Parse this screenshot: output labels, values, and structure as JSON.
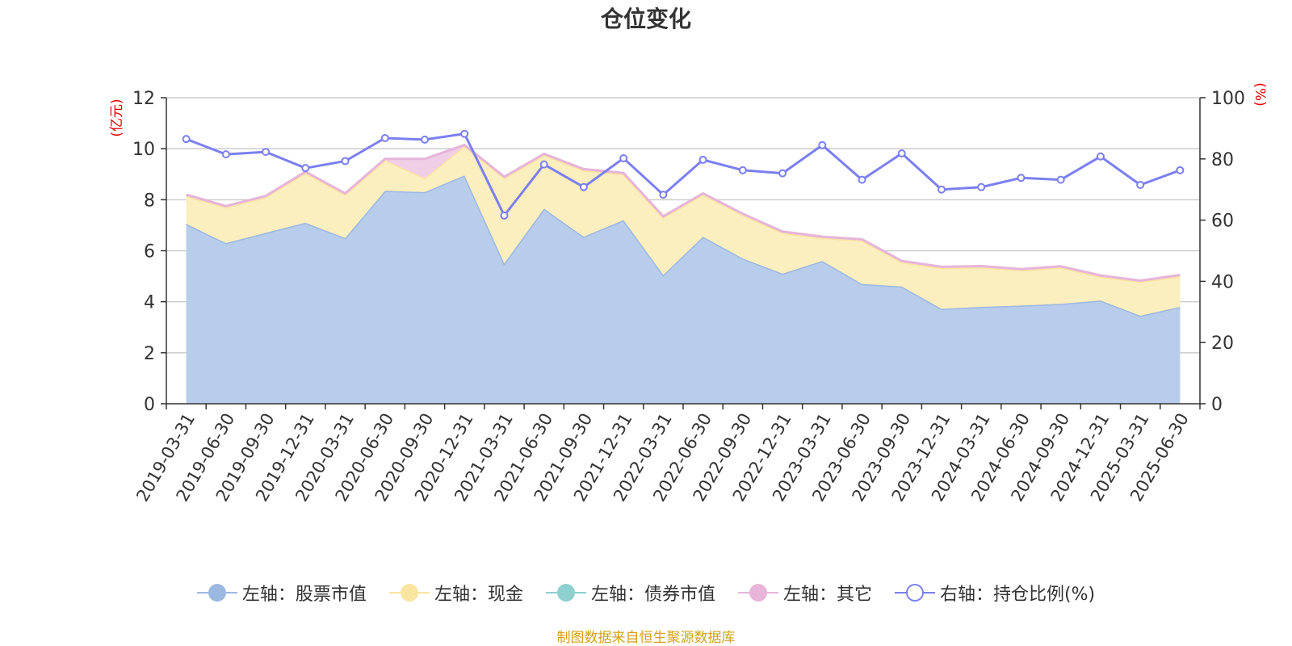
{
  "chart_data": {
    "type": "area",
    "title": "仓位变化",
    "y_left_label": "(亿元)",
    "y_right_label": "(%)",
    "y_left_range": [
      0,
      12
    ],
    "y_left_ticks": [
      "0",
      "2",
      "4",
      "6",
      "8",
      "10",
      "12"
    ],
    "y_right_range": [
      0,
      100
    ],
    "y_right_ticks": [
      "0",
      "20",
      "40",
      "60",
      "80",
      "100"
    ],
    "grid": true,
    "legend_position": "bottom",
    "categories": [
      "2019-03-31",
      "2019-06-30",
      "2019-09-30",
      "2019-12-31",
      "2020-03-31",
      "2020-06-30",
      "2020-09-30",
      "2020-12-31",
      "2021-03-31",
      "2021-06-30",
      "2021-09-30",
      "2021-12-31",
      "2022-03-31",
      "2022-06-30",
      "2022-09-30",
      "2022-12-31",
      "2023-03-31",
      "2023-06-30",
      "2023-09-30",
      "2023-12-31",
      "2024-03-31",
      "2024-06-30",
      "2024-09-30",
      "2024-12-31",
      "2025-03-31",
      "2025-06-30"
    ],
    "series": [
      {
        "name": "左轴：股票市值",
        "axis": "left",
        "kind": "stacked-area",
        "color": "#9db8e0",
        "fill": "#b8cceb",
        "values": [
          7.05,
          6.3,
          6.7,
          7.1,
          6.5,
          8.35,
          8.3,
          8.95,
          5.5,
          7.65,
          6.55,
          7.2,
          5.05,
          6.55,
          5.7,
          5.1,
          5.6,
          4.7,
          4.6,
          3.72,
          3.8,
          3.85,
          3.92,
          4.05,
          3.45,
          3.8
        ]
      },
      {
        "name": "左轴：现金",
        "axis": "left",
        "kind": "stacked-area",
        "color": "#f9e4a0",
        "fill": "#fbeebf",
        "values": [
          1.1,
          1.4,
          1.4,
          1.95,
          1.7,
          1.2,
          0.55,
          1.15,
          3.35,
          2.1,
          2.6,
          1.8,
          2.25,
          1.65,
          1.7,
          1.6,
          0.9,
          1.7,
          0.95,
          1.6,
          1.55,
          1.38,
          1.42,
          0.93,
          1.33,
          1.2
        ]
      },
      {
        "name": "左轴：债券市值",
        "axis": "left",
        "kind": "stacked-area",
        "color": "#8ecfcf",
        "fill": "#8ecfcf",
        "values": [
          0,
          0,
          0,
          0,
          0,
          0,
          0,
          0,
          0,
          0,
          0,
          0,
          0,
          0,
          0,
          0,
          0,
          0,
          0,
          0,
          0,
          0,
          0,
          0,
          0,
          0
        ]
      },
      {
        "name": "左轴：其它",
        "axis": "left",
        "kind": "stacked-area",
        "color": "#e7b4da",
        "fill": "#f0cfe6",
        "values": [
          0.05,
          0.05,
          0.05,
          0.05,
          0.05,
          0.05,
          0.75,
          0.05,
          0.05,
          0.05,
          0.05,
          0.05,
          0.05,
          0.05,
          0.05,
          0.05,
          0.05,
          0.05,
          0.05,
          0.05,
          0.05,
          0.05,
          0.05,
          0.05,
          0.05,
          0.05
        ]
      },
      {
        "name": "右轴：持仓比例(%)",
        "axis": "right",
        "kind": "line",
        "color": "#7b7ff0",
        "values": [
          86.5,
          81.5,
          82.3,
          77,
          79.3,
          86.8,
          86.3,
          88.2,
          61.5,
          78.2,
          70.8,
          80.2,
          68.3,
          79.7,
          76.3,
          75.3,
          84.5,
          73.2,
          81.8,
          70,
          70.8,
          73.8,
          73.2,
          80.8,
          71.5,
          76.3
        ]
      }
    ],
    "source_note": "制图数据来自恒生聚源数据库"
  }
}
